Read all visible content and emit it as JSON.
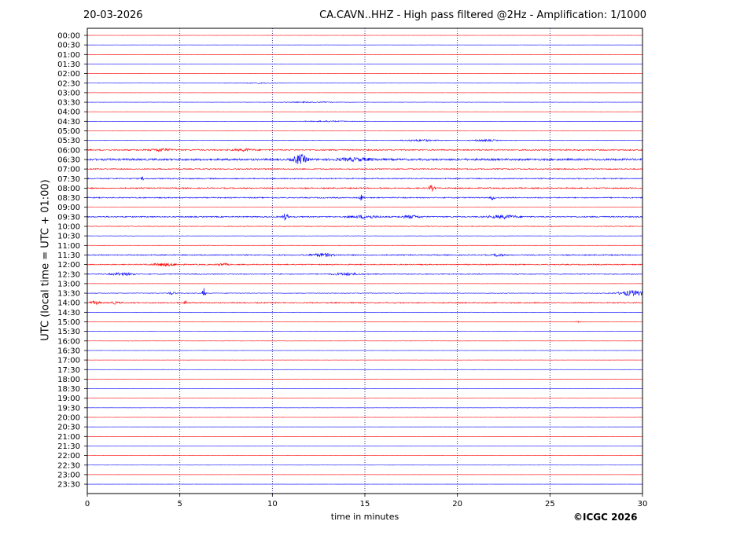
{
  "header": {
    "date": "20-03-2026",
    "title": "CA.CAVN..HHZ - High pass filtered @2Hz - Amplification: 1/1000"
  },
  "footer": {
    "copyright": "©ICGC 2026"
  },
  "chart_data": {
    "type": "line",
    "title": "CA.CAVN..HHZ - High pass filtered @2Hz - Amplification: 1/1000",
    "xlabel": "time in minutes",
    "ylabel": "UTC (local time = UTC + 01:00)",
    "xlim": [
      0,
      30
    ],
    "xticks": [
      0,
      5,
      10,
      15,
      20,
      25,
      30
    ],
    "vertical_gridlines": [
      5,
      10,
      15,
      20,
      25
    ],
    "y_inverted": true,
    "row_labels": [
      "00:00",
      "00:30",
      "01:00",
      "01:30",
      "02:00",
      "02:30",
      "03:00",
      "03:30",
      "04:00",
      "04:30",
      "05:00",
      "05:30",
      "06:00",
      "06:30",
      "07:00",
      "07:30",
      "08:00",
      "08:30",
      "09:00",
      "09:30",
      "10:00",
      "10:30",
      "11:00",
      "11:30",
      "12:00",
      "12:30",
      "13:00",
      "13:30",
      "14:00",
      "14:30",
      "15:00",
      "15:30",
      "16:00",
      "16:30",
      "17:00",
      "17:30",
      "18:00",
      "18:30",
      "19:00",
      "19:30",
      "20:00",
      "20:30",
      "21:00",
      "21:30",
      "22:00",
      "22:30",
      "23:00",
      "23:30"
    ],
    "row_colors": [
      "#ff0000",
      "#0000ff"
    ],
    "noise_levels": [
      0.03,
      0.03,
      0.03,
      0.03,
      0.04,
      0.05,
      0.03,
      0.07,
      0.03,
      0.05,
      0.03,
      0.12,
      0.35,
      0.55,
      0.28,
      0.3,
      0.32,
      0.3,
      0.03,
      0.32,
      0.2,
      0.08,
      0.12,
      0.3,
      0.28,
      0.25,
      0.05,
      0.15,
      0.3,
      0.06,
      0.05,
      0.05,
      0.05,
      0.05,
      0.03,
      0.05,
      0.03,
      0.03,
      0.03,
      0.03,
      0.03,
      0.03,
      0.03,
      0.03,
      0.03,
      0.03,
      0.03,
      0.03
    ],
    "events": [
      {
        "row": 5,
        "t": 9.0,
        "amp": 0.2,
        "dur": 3.0
      },
      {
        "row": 7,
        "t": 12.0,
        "amp": 0.25,
        "dur": 3.0
      },
      {
        "row": 9,
        "t": 13.0,
        "amp": 0.3,
        "dur": 3.0
      },
      {
        "row": 11,
        "t": 18.0,
        "amp": 0.45,
        "dur": 2.0
      },
      {
        "row": 11,
        "t": 21.5,
        "amp": 0.45,
        "dur": 1.5
      },
      {
        "row": 12,
        "t": 4.0,
        "amp": 0.75,
        "dur": 1.0
      },
      {
        "row": 12,
        "t": 8.5,
        "amp": 0.55,
        "dur": 1.0
      },
      {
        "row": 13,
        "t": 11.5,
        "amp": 2.6,
        "dur": 0.7
      },
      {
        "row": 13,
        "t": 14.5,
        "amp": 0.7,
        "dur": 2.0
      },
      {
        "row": 15,
        "t": 3.0,
        "amp": 0.8,
        "dur": 0.2
      },
      {
        "row": 16,
        "t": 18.6,
        "amp": 1.5,
        "dur": 0.3
      },
      {
        "row": 17,
        "t": 14.8,
        "amp": 1.6,
        "dur": 0.2
      },
      {
        "row": 17,
        "t": 21.9,
        "amp": 1.2,
        "dur": 0.2
      },
      {
        "row": 19,
        "t": 10.7,
        "amp": 1.8,
        "dur": 0.3
      },
      {
        "row": 19,
        "t": 15.0,
        "amp": 0.8,
        "dur": 1.5
      },
      {
        "row": 19,
        "t": 17.5,
        "amp": 0.8,
        "dur": 1.0
      },
      {
        "row": 19,
        "t": 22.5,
        "amp": 0.9,
        "dur": 1.5
      },
      {
        "row": 23,
        "t": 12.7,
        "amp": 0.9,
        "dur": 1.2
      },
      {
        "row": 23,
        "t": 22.2,
        "amp": 0.8,
        "dur": 0.5
      },
      {
        "row": 24,
        "t": 4.2,
        "amp": 0.8,
        "dur": 1.3
      },
      {
        "row": 24,
        "t": 7.3,
        "amp": 0.6,
        "dur": 0.6
      },
      {
        "row": 25,
        "t": 1.9,
        "amp": 0.7,
        "dur": 1.2
      },
      {
        "row": 25,
        "t": 14.0,
        "amp": 0.7,
        "dur": 1.4
      },
      {
        "row": 27,
        "t": 4.6,
        "amp": 0.8,
        "dur": 0.4
      },
      {
        "row": 27,
        "t": 6.3,
        "amp": 3.0,
        "dur": 0.15
      },
      {
        "row": 27,
        "t": 29.5,
        "amp": 1.6,
        "dur": 1.5
      },
      {
        "row": 28,
        "t": 0.4,
        "amp": 0.8,
        "dur": 0.6
      },
      {
        "row": 28,
        "t": 1.5,
        "amp": 0.6,
        "dur": 0.5
      },
      {
        "row": 28,
        "t": 5.3,
        "amp": 0.9,
        "dur": 0.15
      },
      {
        "row": 30,
        "t": 26.5,
        "amp": 0.4,
        "dur": 0.4
      }
    ]
  }
}
